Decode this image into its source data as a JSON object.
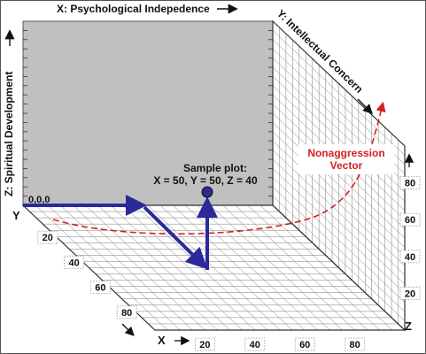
{
  "axes": {
    "x": {
      "title": "X: Psychological Indepedence",
      "letter": "X",
      "ticks": [
        "20",
        "40",
        "60",
        "80"
      ]
    },
    "y": {
      "title": "Y: Intellectual Concern",
      "letter": "Y",
      "ticks": [
        "20",
        "40",
        "60",
        "80"
      ]
    },
    "z": {
      "title": "Z: Spiritual Development",
      "letter": "Z",
      "ticks": [
        "20",
        "40",
        "60",
        "80"
      ]
    }
  },
  "origin_label": "0,0,0",
  "sample": {
    "title": "Sample plot:",
    "coords": "X = 50, Y = 50, Z = 40",
    "x": 50,
    "y": 50,
    "z": 40
  },
  "vector": {
    "label_line1": "Nonaggression",
    "label_line2": "Vector"
  },
  "colors": {
    "back_wall": "#c0c0c0",
    "grid": "#7a7a7a",
    "path": "#2a2a9a",
    "vector": "#d42020",
    "frame": "#555555"
  }
}
